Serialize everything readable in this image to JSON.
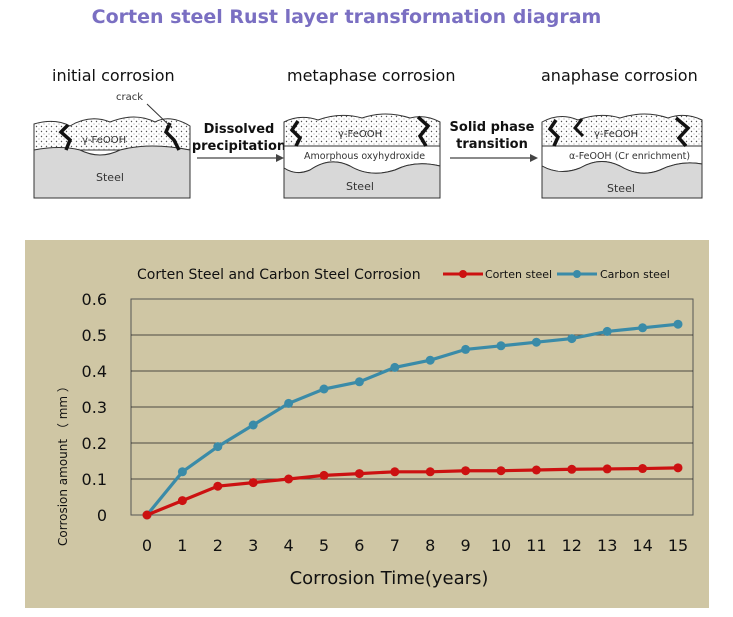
{
  "page": {
    "title": "Corten steel Rust layer transformation diagram"
  },
  "diagram": {
    "stages": [
      {
        "label": "initial corrosion",
        "layer_top": "γ-FeOOH",
        "layer_mid": "",
        "base": "Steel",
        "annotation": "crack"
      },
      {
        "label": "metaphase corrosion",
        "layer_top": "γ-FeOOH",
        "layer_mid": "Amorphous oxyhydroxide",
        "base": "Steel",
        "annotation": ""
      },
      {
        "label": "anaphase corrosion",
        "layer_top": "γ-FeOOH",
        "layer_mid": "α-FeOOH (Cr enrichment)",
        "base": "Steel",
        "annotation": ""
      }
    ],
    "transitions": [
      {
        "line1": "Dissolved",
        "line2": "precipitation"
      },
      {
        "line1": "Solid phase",
        "line2": "transition"
      }
    ]
  },
  "chart_data": {
    "type": "line",
    "title": "Corten Steel and Carbon Steel Corrosion",
    "xlabel": "Corrosion Time(years)",
    "ylabel": "Corrosion amount （ mm ）",
    "x": [
      0,
      1,
      2,
      3,
      4,
      5,
      6,
      7,
      8,
      9,
      10,
      11,
      12,
      13,
      14,
      15
    ],
    "xlim": [
      0,
      15
    ],
    "ylim": [
      0,
      0.6
    ],
    "yticks": [
      "0",
      "0.1",
      "0.2",
      "0.3",
      "0.4",
      "0.5",
      "0.6"
    ],
    "grid": true,
    "legend_position": "top-right",
    "series": [
      {
        "name": "Corten steel",
        "color": "#cc1111",
        "values": [
          0,
          0.04,
          0.08,
          0.09,
          0.1,
          0.11,
          0.115,
          0.12,
          0.12,
          0.123,
          0.123,
          0.125,
          0.127,
          0.128,
          0.129,
          0.131
        ]
      },
      {
        "name": "Carbon steel",
        "color": "#3a8ba8",
        "values": [
          0,
          0.12,
          0.19,
          0.25,
          0.31,
          0.35,
          0.37,
          0.41,
          0.43,
          0.46,
          0.47,
          0.48,
          0.49,
          0.51,
          0.52,
          0.53
        ]
      }
    ]
  }
}
